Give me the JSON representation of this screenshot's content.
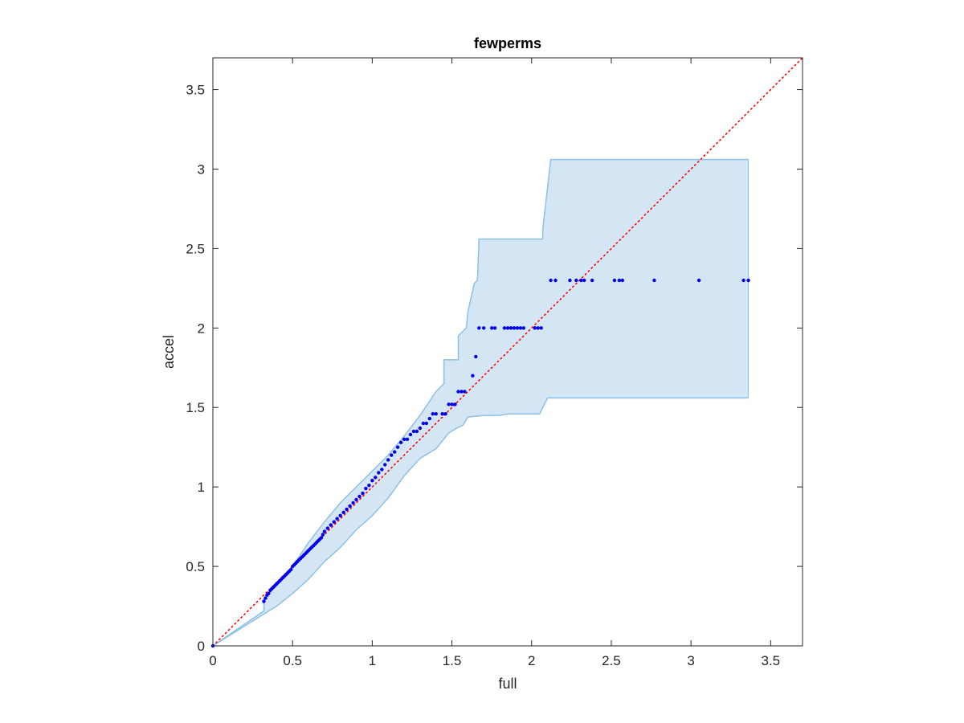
{
  "chart_data": {
    "type": "scatter",
    "title": "fewperms",
    "xlabel": "full",
    "ylabel": "accel",
    "xlim": [
      0,
      3.7
    ],
    "ylim": [
      0,
      3.7
    ],
    "xticks": [
      0,
      0.5,
      1,
      1.5,
      2,
      2.5,
      3,
      3.5
    ],
    "yticks": [
      0,
      0.5,
      1,
      1.5,
      2,
      2.5,
      3,
      3.5
    ],
    "xtick_labels": [
      "0",
      "0.5",
      "1",
      "1.5",
      "2",
      "2.5",
      "3",
      "3.5"
    ],
    "ytick_labels": [
      "0",
      "0.5",
      "1",
      "1.5",
      "2",
      "2.5",
      "3",
      "3.5"
    ],
    "grid": false,
    "box": true,
    "colors": {
      "points": "#0000ee",
      "reference_line": "#ff0000",
      "band_fill": "#d4e6f4",
      "band_edge": "#8dc0e2",
      "axes": "#262626"
    },
    "reference_line": {
      "style": "dotted",
      "x": [
        0,
        3.7
      ],
      "y": [
        0,
        3.7
      ]
    },
    "confidence_band": {
      "upper": [
        [
          0,
          0
        ],
        [
          0.32,
          0.22
        ],
        [
          0.32,
          0.3
        ],
        [
          0.4,
          0.38
        ],
        [
          0.5,
          0.5
        ],
        [
          0.6,
          0.65
        ],
        [
          0.7,
          0.78
        ],
        [
          0.8,
          0.9
        ],
        [
          0.9,
          1.0
        ],
        [
          1.0,
          1.1
        ],
        [
          1.1,
          1.2
        ],
        [
          1.2,
          1.32
        ],
        [
          1.3,
          1.45
        ],
        [
          1.4,
          1.6
        ],
        [
          1.45,
          1.65
        ],
        [
          1.45,
          1.8
        ],
        [
          1.54,
          1.8
        ],
        [
          1.54,
          1.95
        ],
        [
          1.59,
          2.0
        ],
        [
          1.6,
          2.1
        ],
        [
          1.64,
          2.28
        ],
        [
          1.66,
          2.3
        ],
        [
          1.67,
          2.56
        ],
        [
          2.07,
          2.56
        ],
        [
          2.07,
          2.62
        ],
        [
          2.12,
          3.06
        ],
        [
          3.36,
          3.06
        ]
      ],
      "lower": [
        [
          0,
          0
        ],
        [
          0.32,
          0.2
        ],
        [
          0.4,
          0.25
        ],
        [
          0.5,
          0.33
        ],
        [
          0.6,
          0.42
        ],
        [
          0.7,
          0.53
        ],
        [
          0.8,
          0.62
        ],
        [
          0.9,
          0.73
        ],
        [
          1.0,
          0.82
        ],
        [
          1.1,
          0.93
        ],
        [
          1.2,
          1.07
        ],
        [
          1.3,
          1.18
        ],
        [
          1.4,
          1.24
        ],
        [
          1.48,
          1.34
        ],
        [
          1.53,
          1.37
        ],
        [
          1.57,
          1.39
        ],
        [
          1.6,
          1.44
        ],
        [
          1.7,
          1.45
        ],
        [
          1.8,
          1.45
        ],
        [
          1.85,
          1.46
        ],
        [
          2.05,
          1.46
        ],
        [
          2.1,
          1.56
        ],
        [
          2.3,
          1.56
        ],
        [
          3.36,
          1.56
        ]
      ]
    },
    "series": [
      {
        "x": [
          0.0,
          0.32,
          0.33,
          0.34,
          0.35,
          0.36,
          0.37,
          0.38,
          0.39,
          0.4,
          0.41,
          0.42,
          0.43,
          0.44,
          0.45,
          0.46,
          0.47,
          0.48,
          0.49,
          0.5,
          0.51,
          0.52,
          0.53,
          0.54,
          0.55,
          0.56,
          0.57,
          0.58,
          0.59,
          0.6,
          0.61,
          0.62,
          0.63,
          0.64,
          0.65,
          0.66,
          0.67,
          0.68,
          0.69,
          0.7,
          0.72,
          0.74,
          0.76,
          0.78,
          0.8,
          0.82,
          0.84,
          0.86,
          0.88,
          0.9,
          0.92,
          0.94,
          0.96,
          0.98,
          1.0,
          1.02,
          1.04,
          1.06,
          1.08,
          1.1,
          1.12,
          1.14,
          1.16,
          1.18,
          1.2,
          1.22,
          1.24,
          1.26,
          1.28,
          1.3,
          1.32,
          1.34,
          1.36,
          1.38,
          1.4,
          1.44,
          1.46,
          1.48,
          1.5,
          1.52,
          1.54,
          1.56,
          1.58,
          1.63,
          1.65,
          1.67,
          1.7,
          1.75,
          1.77,
          1.83,
          1.85,
          1.87,
          1.89,
          1.91,
          1.93,
          1.95,
          2.02,
          2.04,
          2.06,
          2.12,
          2.15,
          2.24,
          2.28,
          2.31,
          2.33,
          2.38,
          2.52,
          2.55,
          2.57,
          2.77,
          3.05,
          3.33,
          3.36
        ],
        "y": [
          0.0,
          0.28,
          0.3,
          0.32,
          0.33,
          0.35,
          0.36,
          0.37,
          0.38,
          0.39,
          0.4,
          0.41,
          0.42,
          0.43,
          0.44,
          0.45,
          0.46,
          0.47,
          0.48,
          0.5,
          0.51,
          0.52,
          0.53,
          0.54,
          0.55,
          0.56,
          0.57,
          0.58,
          0.59,
          0.6,
          0.61,
          0.62,
          0.63,
          0.64,
          0.65,
          0.66,
          0.67,
          0.68,
          0.7,
          0.72,
          0.74,
          0.76,
          0.78,
          0.8,
          0.82,
          0.84,
          0.86,
          0.88,
          0.9,
          0.92,
          0.94,
          0.96,
          0.99,
          1.01,
          1.04,
          1.06,
          1.09,
          1.11,
          1.14,
          1.17,
          1.2,
          1.22,
          1.25,
          1.28,
          1.3,
          1.3,
          1.33,
          1.35,
          1.35,
          1.37,
          1.4,
          1.4,
          1.43,
          1.46,
          1.46,
          1.46,
          1.46,
          1.52,
          1.52,
          1.52,
          1.6,
          1.6,
          1.6,
          1.7,
          1.82,
          2.0,
          2.0,
          2.0,
          2.0,
          2.0,
          2.0,
          2.0,
          2.0,
          2.0,
          2.0,
          2.0,
          2.0,
          2.0,
          2.0,
          2.3,
          2.3,
          2.3,
          2.3,
          2.3,
          2.3,
          2.3,
          2.3,
          2.3,
          2.3,
          2.3,
          2.3,
          2.3,
          2.3
        ]
      }
    ]
  }
}
